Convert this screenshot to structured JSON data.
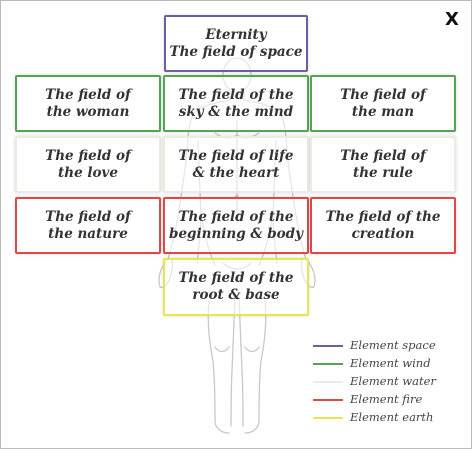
{
  "close_label": "X",
  "fields": [
    {
      "id": "space",
      "element": "space",
      "text": "Eternity\nThe field of space"
    },
    {
      "id": "woman",
      "element": "wind",
      "text": "The field of\nthe woman"
    },
    {
      "id": "sky-mind",
      "element": "wind",
      "text": "The field of the\nsky & the mind"
    },
    {
      "id": "man",
      "element": "wind",
      "text": "The field of\nthe man"
    },
    {
      "id": "love",
      "element": "water",
      "text": "The field of\nthe love"
    },
    {
      "id": "life-heart",
      "element": "water",
      "text": "The field of life\n& the heart"
    },
    {
      "id": "rule",
      "element": "water",
      "text": "The field of\nthe rule"
    },
    {
      "id": "nature",
      "element": "fire",
      "text": "The field of\nthe nature"
    },
    {
      "id": "beginning-body",
      "element": "fire",
      "text": "The field of the\nbeginning & body"
    },
    {
      "id": "creation",
      "element": "fire",
      "text": "The field of the\ncreation"
    },
    {
      "id": "root-base",
      "element": "earth",
      "text": "The field of the\nroot & base"
    }
  ],
  "legend": [
    {
      "label": "Element space",
      "color": "#6a5fa3"
    },
    {
      "label": "Element wind",
      "color": "#53a553"
    },
    {
      "label": "Element water",
      "color": "#ebebe4"
    },
    {
      "label": "Element fire",
      "color": "#e04848"
    },
    {
      "label": "Element earth",
      "color": "#e9e64c"
    }
  ]
}
